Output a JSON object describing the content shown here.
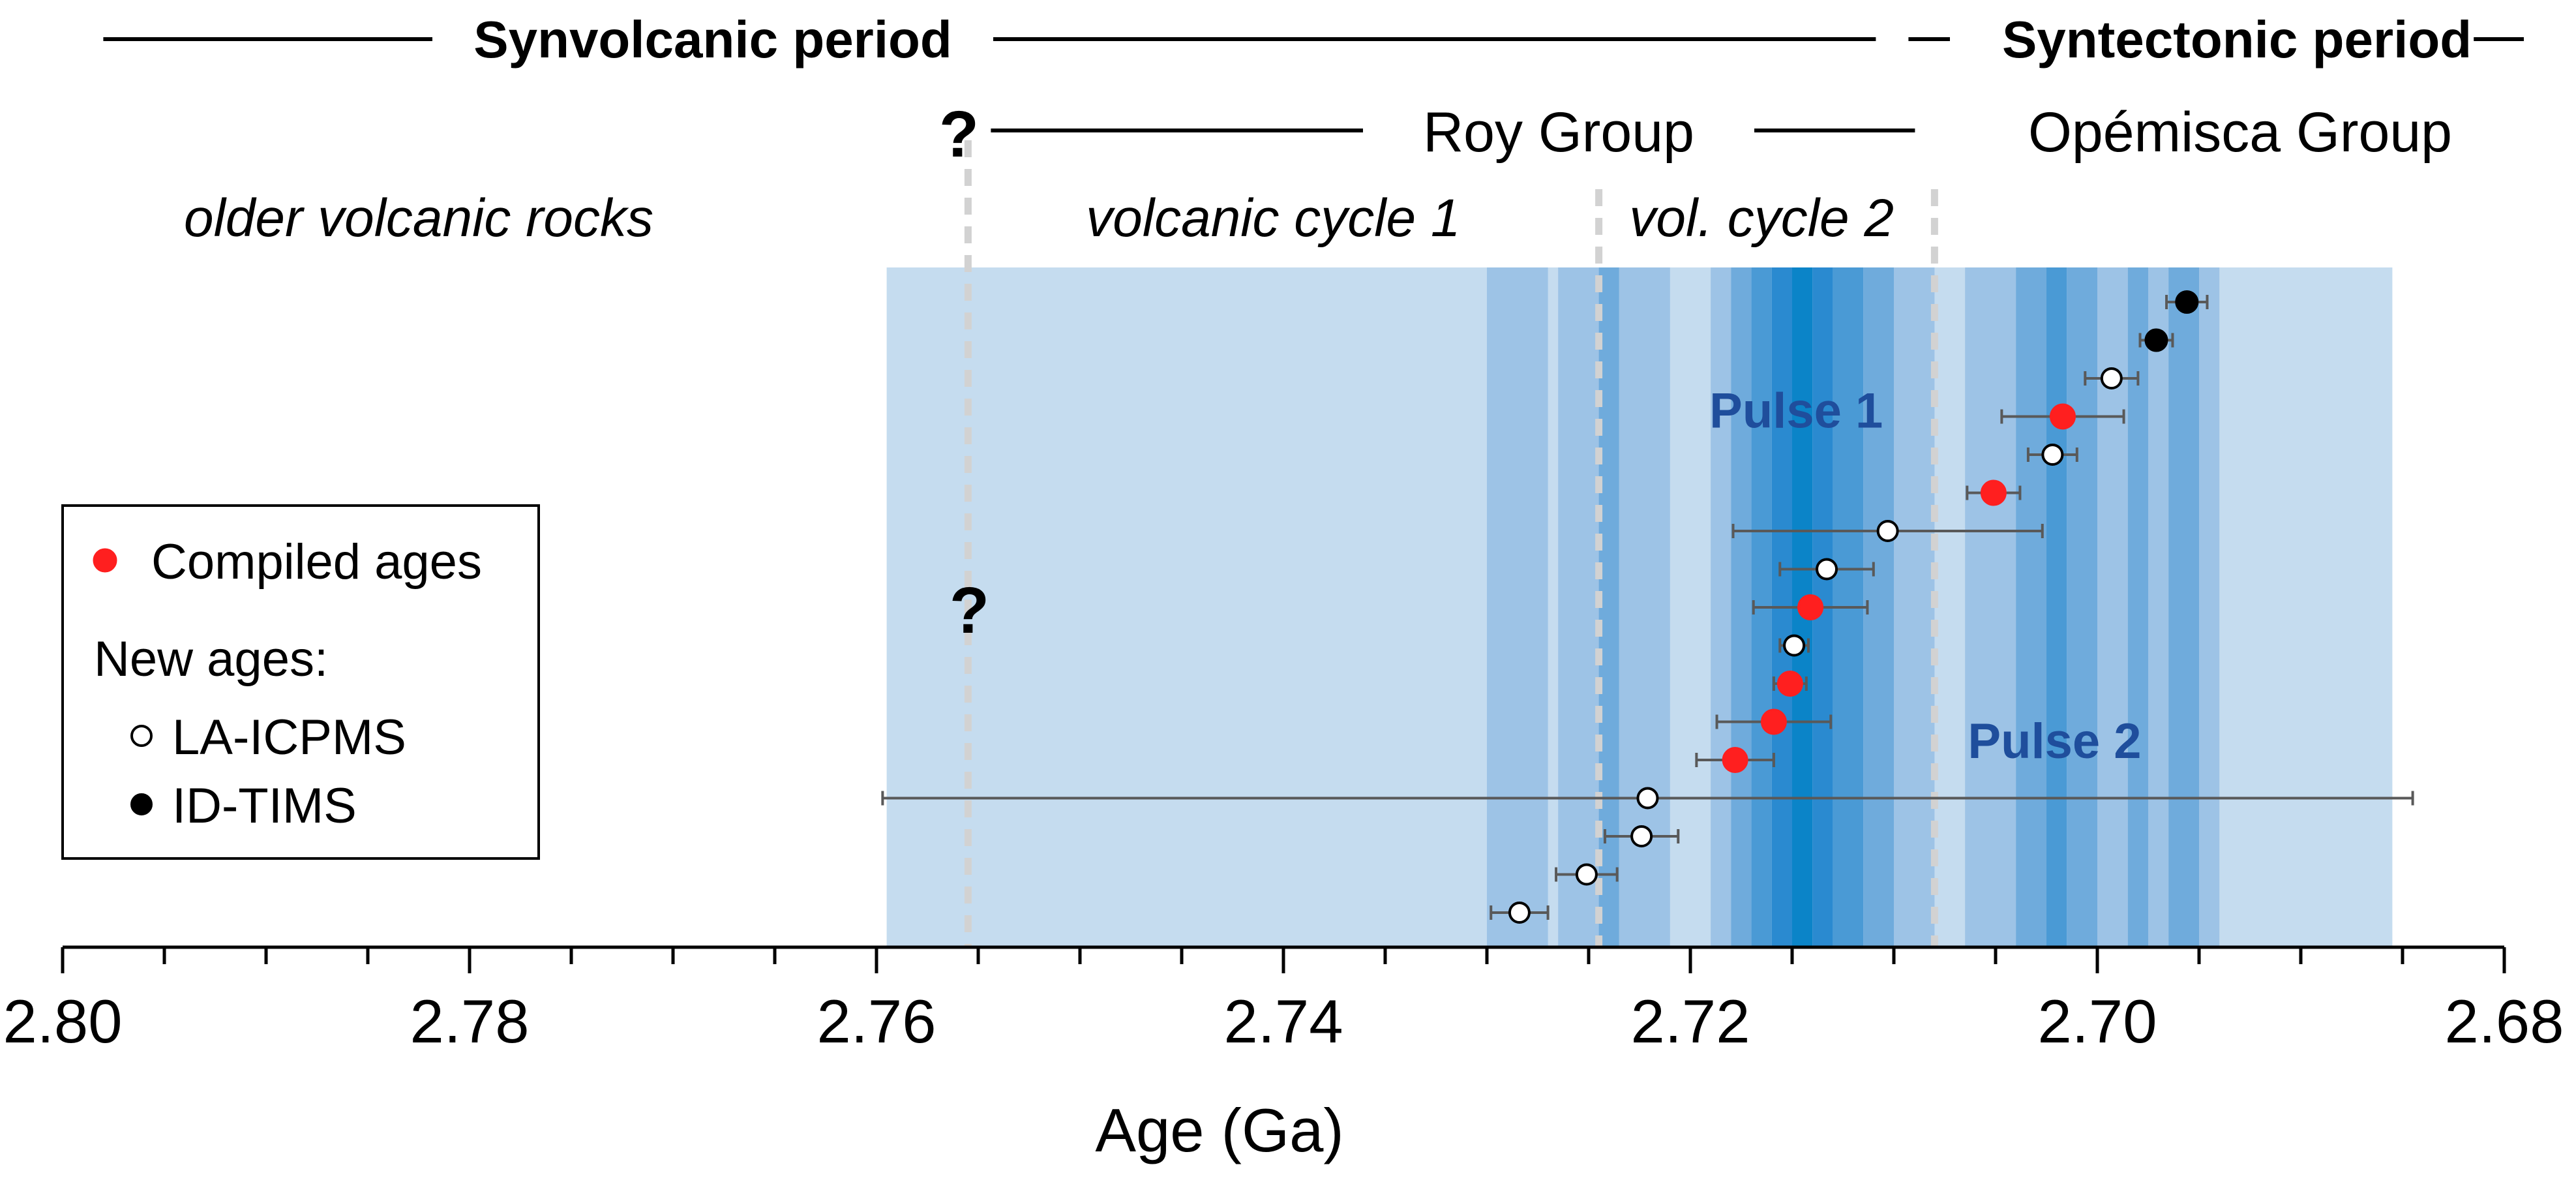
{
  "chart_data": {
    "type": "scatter",
    "xlabel": "Age (Ga)",
    "xlim": [
      2.8,
      2.68
    ],
    "x_ticks": [
      "2.80",
      "2.78",
      "2.76",
      "2.74",
      "2.72",
      "2.70",
      "2.68"
    ],
    "periods": [
      {
        "label": "Synvolcanic period",
        "start": 2.798,
        "end": 2.708
      },
      {
        "label": "Syntectonic period",
        "start": 2.708,
        "end": 2.6815
      }
    ],
    "groups": [
      {
        "label": "Roy Group",
        "start": 2.7555,
        "end": 2.708
      },
      {
        "label": "Opémisca Group",
        "start": 2.708,
        "end": 2.68
      }
    ],
    "uncertain_marker": "?",
    "subdivisions": [
      {
        "label": "older volcanic rocks",
        "center": 2.7825
      },
      {
        "label": "volcanic cycle 1",
        "center": 2.7405
      },
      {
        "label": "vol. cycle 2",
        "center": 2.7165
      }
    ],
    "boundaries": [
      2.7555,
      2.7245,
      2.708
    ],
    "background_interval": [
      2.7595,
      2.6855
    ],
    "shaded_bands": [
      {
        "start": 2.73,
        "end": 2.727,
        "level": 2
      },
      {
        "start": 2.7265,
        "end": 2.7245,
        "level": 2
      },
      {
        "start": 2.7245,
        "end": 2.7235,
        "level": 3
      },
      {
        "start": 2.7235,
        "end": 2.721,
        "level": 2
      },
      {
        "start": 2.719,
        "end": 2.718,
        "level": 2
      },
      {
        "start": 2.718,
        "end": 2.717,
        "level": 3
      },
      {
        "start": 2.717,
        "end": 2.716,
        "level": 4
      },
      {
        "start": 2.716,
        "end": 2.715,
        "level": 5
      },
      {
        "start": 2.715,
        "end": 2.714,
        "level": 6
      },
      {
        "start": 2.714,
        "end": 2.713,
        "level": 5
      },
      {
        "start": 2.713,
        "end": 2.7115,
        "level": 4
      },
      {
        "start": 2.7115,
        "end": 2.71,
        "level": 3
      },
      {
        "start": 2.71,
        "end": 2.708,
        "level": 2
      },
      {
        "start": 2.7065,
        "end": 2.704,
        "level": 2
      },
      {
        "start": 2.704,
        "end": 2.7025,
        "level": 3
      },
      {
        "start": 2.7025,
        "end": 2.7015,
        "level": 4
      },
      {
        "start": 2.7015,
        "end": 2.7,
        "level": 3
      },
      {
        "start": 2.7,
        "end": 2.6985,
        "level": 2
      },
      {
        "start": 2.6985,
        "end": 2.6975,
        "level": 3
      },
      {
        "start": 2.6975,
        "end": 2.6965,
        "level": 2
      },
      {
        "start": 2.6965,
        "end": 2.695,
        "level": 3
      },
      {
        "start": 2.695,
        "end": 2.694,
        "level": 2
      }
    ],
    "pulses": [
      {
        "label": "Pulse 1",
        "center": 2.7148,
        "row": 2.85
      },
      {
        "label": "Pulse 2",
        "center": 2.7021,
        "row": 11.5
      }
    ],
    "series": [
      {
        "name": "Compiled ages",
        "marker": "red"
      },
      {
        "name": "LA-ICPMS",
        "marker": "open"
      },
      {
        "name": "ID-TIMS",
        "marker": "black"
      }
    ],
    "legend_heading": "New ages:",
    "legend_position": "center-left",
    "points": [
      {
        "age": 2.6956,
        "err": 0.001,
        "series": "ID-TIMS"
      },
      {
        "age": 2.6971,
        "err": 0.0008,
        "series": "ID-TIMS"
      },
      {
        "age": 2.6993,
        "err": 0.0013,
        "series": "LA-ICPMS"
      },
      {
        "age": 2.7017,
        "err": 0.003,
        "series": "Compiled ages"
      },
      {
        "age": 2.7022,
        "err": 0.0012,
        "series": "LA-ICPMS"
      },
      {
        "age": 2.7051,
        "err": 0.0013,
        "series": "Compiled ages"
      },
      {
        "age": 2.7103,
        "err": 0.0076,
        "series": "LA-ICPMS"
      },
      {
        "age": 2.7133,
        "err": 0.0023,
        "series": "LA-ICPMS"
      },
      {
        "age": 2.7141,
        "err": 0.0028,
        "series": "Compiled ages"
      },
      {
        "age": 2.7149,
        "err": 0.0007,
        "series": "LA-ICPMS"
      },
      {
        "age": 2.7151,
        "err": 0.0008,
        "series": "Compiled ages"
      },
      {
        "age": 2.7159,
        "err": 0.0028,
        "series": "Compiled ages"
      },
      {
        "age": 2.7178,
        "err": 0.0019,
        "series": "Compiled ages"
      },
      {
        "age": 2.7221,
        "err": 0.0376,
        "series": "LA-ICPMS"
      },
      {
        "age": 2.7224,
        "err": 0.0018,
        "series": "LA-ICPMS"
      },
      {
        "age": 2.7251,
        "err": 0.0015,
        "series": "LA-ICPMS"
      },
      {
        "age": 2.7284,
        "err": 0.0014,
        "series": "LA-ICPMS"
      }
    ],
    "colors": {
      "background": "#c5dcef",
      "level_2": "#9dc3e6",
      "level_3": "#6fabdc",
      "level_4": "#4a9ad5",
      "level_5": "#2a8ad0",
      "level_6": "#0b84c8",
      "pulse_text": "#1f4e9c",
      "compiled": "#ff1f1f",
      "open_fill": "#ffffff",
      "black_fill": "#000000",
      "boundary": "#d2d2d2",
      "error_bar": "#595959"
    }
  }
}
